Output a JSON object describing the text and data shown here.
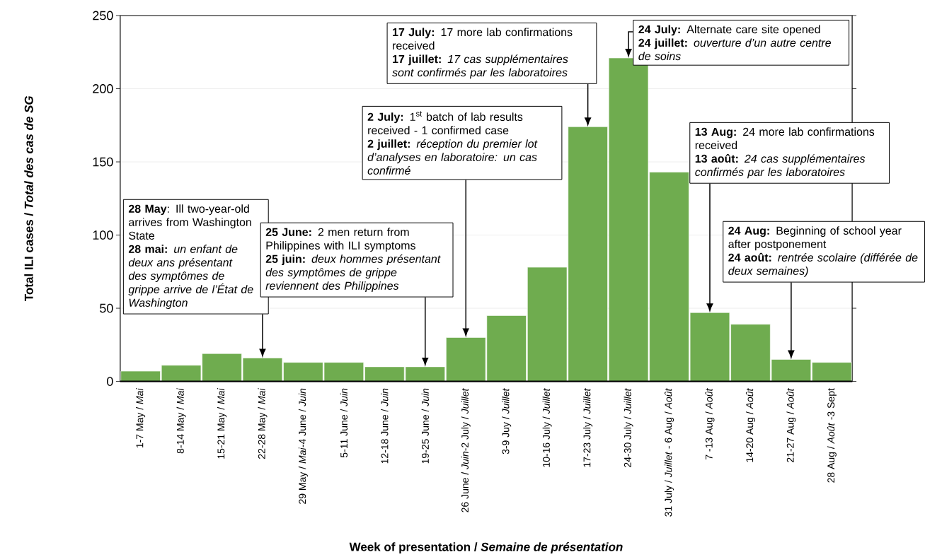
{
  "chart_data": {
    "type": "bar",
    "xlabel": "Week of presentation / *Semaine de présentation*",
    "ylabel": "Total ILI cases / *Total des cas de SG*",
    "categories": [
      "1-7 May / *Mai*",
      "8-14 May / *Mai*",
      "15-21 May / *Mai*",
      "22-28 May / *Mai*",
      "29 May / *Mai*-4 June / *Juin*",
      "5-11 June / *Juin*",
      "12-18 June / *Juin*",
      "19-25 June / *Juin*",
      "26 June / *Juin*-2 July / *Juillet*",
      "3-9 Juy / *Juillet*",
      "10-16 July / *Juillet*",
      "17-23 July / *Juillet*",
      "24-30 July / *Juillet*",
      "31 July / *Juillet* - 6 Aug / *Août*",
      "7 -13 Aug / *Août*",
      "14-20 Aug / *Août*",
      "21-27 Aug / *Août*",
      "28 Aug / *Août* -3 Sept"
    ],
    "values": [
      7,
      11,
      19,
      16,
      13,
      13,
      10,
      10,
      30,
      45,
      78,
      174,
      221,
      143,
      47,
      39,
      15,
      13
    ],
    "color": "#6fac4f",
    "ylim": [
      0,
      250
    ],
    "yticks": [
      0,
      50,
      100,
      150,
      200,
      250
    ],
    "grid": "y",
    "annotations": [
      "**28 May**: Ill two-year-old arrives from Washington State",
      "**28 mai:** *un enfant de deux ans présentant des symptômes de grippe arrive de l’État de Washington*",
      "**25 June:** 2 men return from Philippines with ILI symptoms",
      "**25 juin:** *deux hommes présentant des symptômes de grippe reviennent des Philippines*",
      "**2 July:** 1$^{st}$ batch of lab results received - 1 confirmed case",
      "**2 juillet:** *réception du premier lot d’analyses en laboratoire: un cas confirmé*",
      "**17 July:** 17 more lab confirmations received",
      "**17 juillet:** *17 cas supplémentaires sont confirmés par les laboratoires*",
      "**24 July:** Alternate care site opened",
      "**24 juillet:** *ouverture d’un autre centre de soins*",
      "**13 Aug:** 24 more lab confirmations received",
      "**13 août:** *24 cas supplémentaires confirmés par les laboratoires*",
      "**24 Aug:** Beginning of school year after postponement",
      "**24 août:** *rentrée scolaire (différée de deux semaines)*"
    ]
  }
}
